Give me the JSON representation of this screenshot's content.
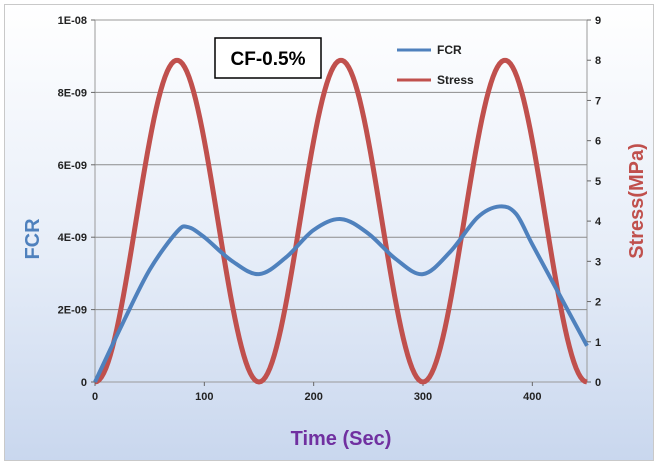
{
  "chart_data": {
    "type": "line",
    "xlabel": "Time (Sec)",
    "ylabel_left": "FCR",
    "ylabel_right": "Stress(MPa)",
    "annotation": "CF-0.5%",
    "x_range": [
      0,
      450
    ],
    "x_ticks": [
      "0",
      "100",
      "200",
      "300",
      "400"
    ],
    "y_left_range": [
      0,
      1e-08
    ],
    "y_left_ticks": [
      "0",
      "2E-09",
      "4E-09",
      "6E-09",
      "8E-09",
      "1E-08"
    ],
    "y_right_range": [
      0,
      9
    ],
    "y_right_ticks": [
      "0",
      "1",
      "2",
      "3",
      "4",
      "5",
      "6",
      "7",
      "8",
      "9"
    ],
    "legend_position": "top-right",
    "grid": "horizontal",
    "series": [
      {
        "name": "FCR",
        "axis": "left",
        "color": "#4f81bd",
        "x": [
          0,
          25,
          50,
          75,
          85,
          100,
          125,
          150,
          175,
          200,
          225,
          250,
          275,
          300,
          325,
          350,
          370,
          385,
          400,
          425,
          450
        ],
        "values": [
          0,
          1.6e-09,
          3.1e-09,
          4.15e-09,
          4.28e-09,
          4e-09,
          3.35e-09,
          2.98e-09,
          3.45e-09,
          4.2e-09,
          4.5e-09,
          4.1e-09,
          3.4e-09,
          2.98e-09,
          3.6e-09,
          4.55e-09,
          4.85e-09,
          4.65e-09,
          3.8e-09,
          2.4e-09,
          1e-09
        ]
      },
      {
        "name": "Stress",
        "axis": "right",
        "color": "#c0504d",
        "period_sec": 150,
        "amplitude_mpa": 8,
        "min_mpa": 0,
        "x": [
          0,
          37.5,
          75,
          112.5,
          150,
          187.5,
          225,
          262.5,
          300,
          337.5,
          375,
          412.5,
          450
        ],
        "values": [
          0,
          4,
          8,
          4,
          0,
          4,
          8,
          4,
          0,
          4,
          8,
          4,
          0
        ]
      }
    ]
  }
}
